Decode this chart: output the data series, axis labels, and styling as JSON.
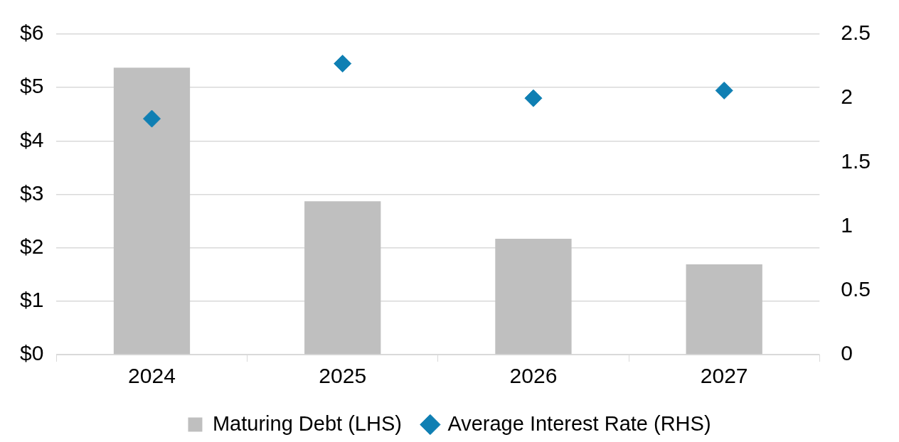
{
  "chart_data": {
    "type": "bar",
    "categories": [
      "2024",
      "2025",
      "2026",
      "2027"
    ],
    "series": [
      {
        "name": "Maturing Debt (LHS)",
        "color": "#bfbfbf",
        "values": [
          5.37,
          2.87,
          2.17,
          1.69
        ]
      },
      {
        "name": "Average Interest Rate (RHS)",
        "type": "scatter",
        "axis": "y2",
        "color": "#0f7fb3",
        "values": [
          1.84,
          2.27,
          2.0,
          2.06
        ]
      }
    ],
    "ylim": [
      0,
      6
    ],
    "yticks": [
      {
        "value": 0,
        "label": "$0"
      },
      {
        "value": 1,
        "label": "$1"
      },
      {
        "value": 2,
        "label": "$2"
      },
      {
        "value": 3,
        "label": "$3"
      },
      {
        "value": 4,
        "label": "$4"
      },
      {
        "value": 5,
        "label": "$5"
      },
      {
        "value": 6,
        "label": "$6"
      }
    ],
    "y2lim": [
      0,
      2.5
    ],
    "y2ticks": [
      0,
      0.5,
      1,
      1.5,
      2,
      2.5
    ],
    "grid": "y",
    "legend": "bottom",
    "marker": "diamond"
  }
}
